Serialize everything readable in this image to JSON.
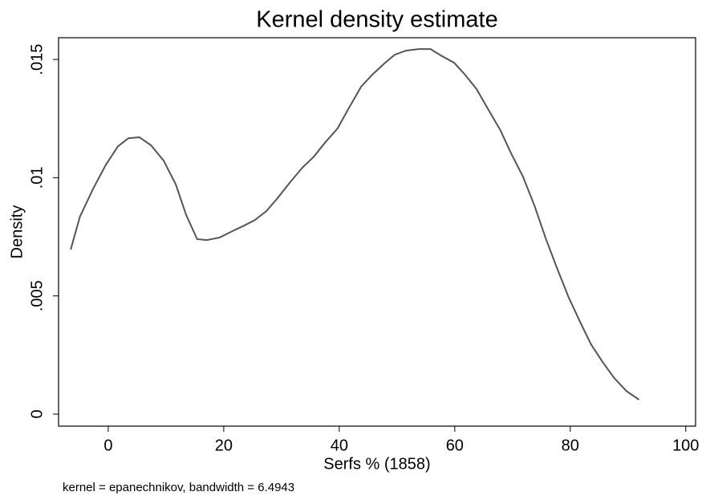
{
  "chart_data": {
    "type": "line",
    "title": "Kernel density estimate",
    "x_label": "Serfs % (1858)",
    "y_label": "Density",
    "note": "kernel = epanechnikov, bandwidth = 6.4943",
    "x": [
      -6.5,
      -4.9,
      -2.6,
      -0.4,
      1.7,
      3.5,
      5.4,
      7.4,
      9.6,
      11.7,
      13.5,
      15.4,
      17.1,
      19.3,
      21.5,
      23.5,
      25.4,
      27.4,
      29.3,
      31.5,
      33.6,
      35.6,
      37.6,
      39.7,
      41.7,
      43.8,
      45.7,
      47.8,
      49.6,
      51.5,
      53.8,
      55.8,
      57.6,
      59.9,
      61.8,
      63.8,
      65.7,
      67.9,
      69.7,
      71.8,
      73.8,
      75.7,
      77.6,
      79.7,
      81.7,
      83.6,
      85.7,
      87.6,
      89.7,
      91.9
    ],
    "series": [
      {
        "name": "Density",
        "color": "#555555",
        "values": [
          0.00696,
          0.00835,
          0.00954,
          0.01055,
          0.01133,
          0.01167,
          0.01171,
          0.01137,
          0.01072,
          0.00971,
          0.00842,
          0.0074,
          0.00736,
          0.00747,
          0.00774,
          0.00797,
          0.00821,
          0.00859,
          0.00913,
          0.00981,
          0.01042,
          0.01089,
          0.0115,
          0.01208,
          0.01296,
          0.01385,
          0.01435,
          0.01483,
          0.0152,
          0.01537,
          0.01544,
          0.01544,
          0.01517,
          0.01486,
          0.01435,
          0.01374,
          0.01293,
          0.01201,
          0.01106,
          0.01005,
          0.00882,
          0.00747,
          0.00624,
          0.00495,
          0.0039,
          0.00295,
          0.00217,
          0.00153,
          0.00098,
          0.00061
        ]
      }
    ],
    "xlim": [
      -8.6,
      101.7
    ],
    "xticks": [
      0,
      20,
      40,
      60,
      80,
      100
    ],
    "ylim": [
      -0.00051,
      0.01592
    ],
    "yticks": [
      0,
      {
        "value": 0.005,
        "label": ".005"
      },
      {
        "value": 0.01,
        "label": ".01"
      },
      {
        "value": 0.015,
        "label": ".015"
      }
    ]
  }
}
